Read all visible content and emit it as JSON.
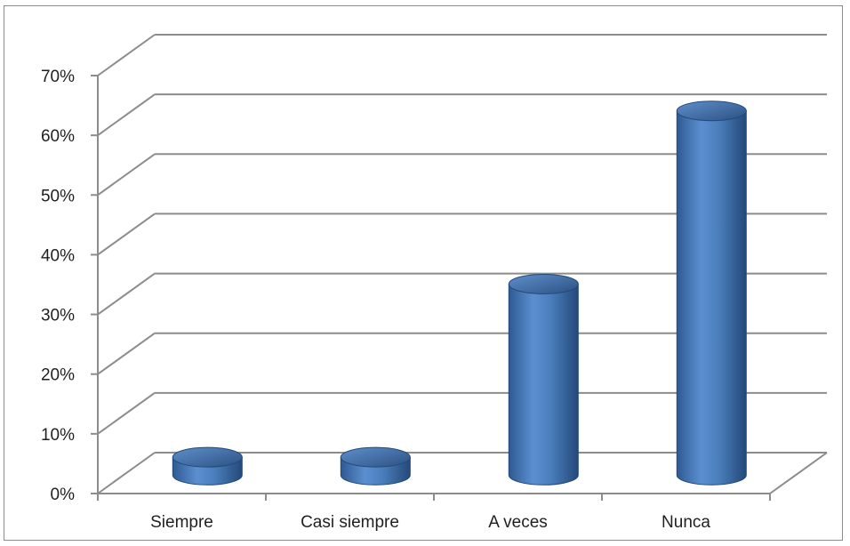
{
  "chart_data": {
    "type": "bar",
    "style": "3d-cylinder",
    "categories": [
      "Siempre",
      "Casi siempre",
      "A veces",
      "Nunca"
    ],
    "values": [
      3,
      3,
      32,
      61
    ],
    "y_tick_labels": [
      "0%",
      "10%",
      "20%",
      "30%",
      "40%",
      "50%",
      "60%",
      "70%"
    ],
    "ylim": [
      0,
      70
    ],
    "grid": true,
    "legend": "none",
    "colors": {
      "bar": "#4a7ebb",
      "bar_dark": "#2c5183",
      "bar_light": "#8db3e2",
      "grid": "#8c8c8c"
    }
  }
}
